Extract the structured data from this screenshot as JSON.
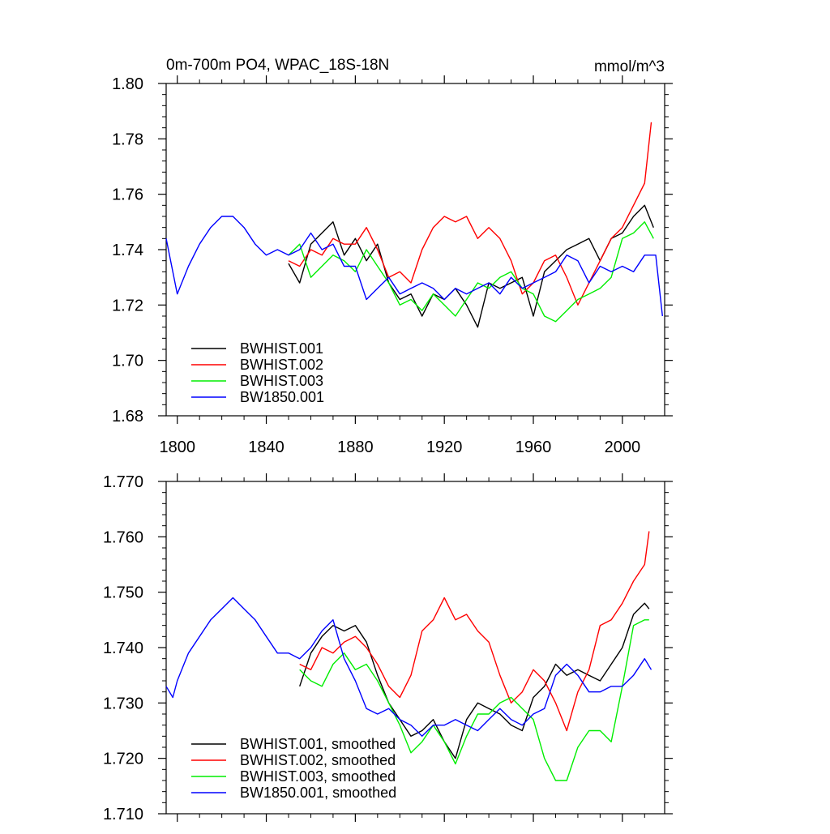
{
  "chart_data": [
    {
      "type": "line",
      "title": "0m-700m PO4, WPAC_18S-18N",
      "units": "mmol/m^3",
      "xlabel": "",
      "ylabel": "",
      "xlim": [
        1795,
        2019
      ],
      "ylim": [
        1.68,
        1.8
      ],
      "xticks": [
        1800,
        1840,
        1880,
        1920,
        1960,
        2000
      ],
      "yticks": [
        "1.68",
        "1.70",
        "1.72",
        "1.74",
        "1.76",
        "1.78",
        "1.80"
      ],
      "legend_position": "bottom-left",
      "series": [
        {
          "name": "BWHIST.001",
          "color": "#000000",
          "x": [
            1850,
            1855,
            1860,
            1865,
            1870,
            1875,
            1880,
            1885,
            1890,
            1895,
            1900,
            1905,
            1910,
            1915,
            1920,
            1925,
            1930,
            1935,
            1940,
            1945,
            1950,
            1955,
            1960,
            1965,
            1970,
            1975,
            1980,
            1985,
            1990,
            1995,
            2000,
            2005,
            2010,
            2014
          ],
          "values": [
            1.735,
            1.728,
            1.742,
            1.746,
            1.75,
            1.738,
            1.744,
            1.736,
            1.742,
            1.728,
            1.722,
            1.724,
            1.716,
            1.724,
            1.722,
            1.726,
            1.72,
            1.712,
            1.728,
            1.726,
            1.728,
            1.73,
            1.716,
            1.732,
            1.736,
            1.74,
            1.742,
            1.744,
            1.736,
            1.744,
            1.746,
            1.752,
            1.756,
            1.748
          ]
        },
        {
          "name": "BWHIST.002",
          "color": "#ff0000",
          "x": [
            1850,
            1855,
            1860,
            1865,
            1870,
            1875,
            1880,
            1885,
            1890,
            1895,
            1900,
            1905,
            1910,
            1915,
            1920,
            1925,
            1930,
            1935,
            1940,
            1945,
            1950,
            1955,
            1960,
            1965,
            1970,
            1975,
            1980,
            1985,
            1990,
            1995,
            2000,
            2005,
            2010,
            2013
          ],
          "values": [
            1.736,
            1.734,
            1.74,
            1.738,
            1.744,
            1.742,
            1.742,
            1.748,
            1.74,
            1.73,
            1.732,
            1.728,
            1.74,
            1.748,
            1.752,
            1.75,
            1.752,
            1.744,
            1.748,
            1.744,
            1.736,
            1.724,
            1.728,
            1.736,
            1.738,
            1.73,
            1.72,
            1.728,
            1.736,
            1.744,
            1.748,
            1.756,
            1.764,
            1.786
          ]
        },
        {
          "name": "BWHIST.003",
          "color": "#00ee00",
          "x": [
            1850,
            1855,
            1860,
            1865,
            1870,
            1875,
            1880,
            1885,
            1890,
            1895,
            1900,
            1905,
            1910,
            1915,
            1920,
            1925,
            1930,
            1935,
            1940,
            1945,
            1950,
            1955,
            1960,
            1965,
            1970,
            1975,
            1980,
            1985,
            1990,
            1995,
            2000,
            2005,
            2010,
            2014
          ],
          "values": [
            1.738,
            1.742,
            1.73,
            1.734,
            1.738,
            1.736,
            1.732,
            1.74,
            1.734,
            1.728,
            1.72,
            1.722,
            1.718,
            1.724,
            1.72,
            1.716,
            1.722,
            1.728,
            1.726,
            1.73,
            1.732,
            1.726,
            1.724,
            1.716,
            1.714,
            1.718,
            1.722,
            1.724,
            1.726,
            1.73,
            1.744,
            1.746,
            1.75,
            1.744
          ]
        },
        {
          "name": "BW1850.001",
          "color": "#0000ff",
          "x": [
            1795,
            1800,
            1805,
            1810,
            1815,
            1820,
            1825,
            1830,
            1835,
            1840,
            1845,
            1850,
            1855,
            1860,
            1865,
            1870,
            1875,
            1880,
            1885,
            1890,
            1895,
            1900,
            1905,
            1910,
            1915,
            1920,
            1925,
            1930,
            1935,
            1940,
            1945,
            1950,
            1955,
            1960,
            1965,
            1970,
            1975,
            1980,
            1985,
            1990,
            1995,
            2000,
            2005,
            2010,
            2015,
            2018
          ],
          "values": [
            1.744,
            1.724,
            1.734,
            1.742,
            1.748,
            1.752,
            1.752,
            1.748,
            1.742,
            1.738,
            1.74,
            1.738,
            1.74,
            1.746,
            1.74,
            1.742,
            1.734,
            1.734,
            1.722,
            1.726,
            1.73,
            1.724,
            1.726,
            1.728,
            1.726,
            1.722,
            1.726,
            1.724,
            1.726,
            1.728,
            1.724,
            1.73,
            1.726,
            1.728,
            1.73,
            1.732,
            1.738,
            1.736,
            1.728,
            1.734,
            1.732,
            1.734,
            1.732,
            1.738,
            1.738,
            1.716
          ]
        }
      ]
    },
    {
      "type": "line",
      "title": "",
      "xlabel": "",
      "ylabel": "",
      "xlim": [
        1795,
        2019
      ],
      "ylim": [
        1.71,
        1.77
      ],
      "xticks": [
        1800,
        1840,
        1880,
        1920,
        1960,
        2000
      ],
      "yticks": [
        "1.710",
        "1.720",
        "1.730",
        "1.740",
        "1.750",
        "1.760",
        "1.770"
      ],
      "legend_position": "bottom-left",
      "series": [
        {
          "name": "BWHIST.001, smoothed",
          "color": "#000000",
          "x": [
            1855,
            1860,
            1865,
            1870,
            1875,
            1880,
            1885,
            1890,
            1895,
            1900,
            1905,
            1910,
            1915,
            1920,
            1925,
            1930,
            1935,
            1940,
            1945,
            1950,
            1955,
            1960,
            1965,
            1970,
            1975,
            1980,
            1985,
            1990,
            1995,
            2000,
            2005,
            2010,
            2012
          ],
          "values": [
            1.733,
            1.739,
            1.742,
            1.744,
            1.743,
            1.744,
            1.741,
            1.735,
            1.73,
            1.727,
            1.724,
            1.725,
            1.727,
            1.723,
            1.72,
            1.727,
            1.73,
            1.729,
            1.728,
            1.726,
            1.725,
            1.731,
            1.733,
            1.737,
            1.735,
            1.736,
            1.735,
            1.734,
            1.737,
            1.74,
            1.746,
            1.748,
            1.747
          ]
        },
        {
          "name": "BWHIST.002, smoothed",
          "color": "#ff0000",
          "x": [
            1855,
            1860,
            1865,
            1870,
            1875,
            1880,
            1885,
            1890,
            1895,
            1900,
            1905,
            1910,
            1915,
            1920,
            1925,
            1930,
            1935,
            1940,
            1945,
            1950,
            1955,
            1960,
            1965,
            1970,
            1975,
            1980,
            1985,
            1990,
            1995,
            2000,
            2005,
            2010,
            2012
          ],
          "values": [
            1.737,
            1.736,
            1.74,
            1.739,
            1.741,
            1.742,
            1.74,
            1.737,
            1.733,
            1.731,
            1.735,
            1.743,
            1.745,
            1.749,
            1.745,
            1.746,
            1.743,
            1.741,
            1.735,
            1.73,
            1.732,
            1.736,
            1.734,
            1.73,
            1.725,
            1.732,
            1.736,
            1.744,
            1.745,
            1.748,
            1.752,
            1.755,
            1.761
          ]
        },
        {
          "name": "BWHIST.003, smoothed",
          "color": "#00ee00",
          "x": [
            1855,
            1860,
            1865,
            1870,
            1875,
            1880,
            1885,
            1890,
            1895,
            1900,
            1905,
            1910,
            1915,
            1920,
            1925,
            1930,
            1935,
            1940,
            1945,
            1950,
            1955,
            1960,
            1965,
            1970,
            1975,
            1980,
            1985,
            1990,
            1995,
            2000,
            2005,
            2010,
            2012
          ],
          "values": [
            1.736,
            1.734,
            1.733,
            1.737,
            1.739,
            1.736,
            1.737,
            1.734,
            1.73,
            1.726,
            1.721,
            1.723,
            1.726,
            1.723,
            1.719,
            1.724,
            1.728,
            1.728,
            1.73,
            1.731,
            1.729,
            1.727,
            1.72,
            1.716,
            1.716,
            1.722,
            1.725,
            1.725,
            1.723,
            1.733,
            1.744,
            1.745,
            1.745
          ]
        },
        {
          "name": "BW1850.001, smoothed",
          "color": "#0000ff",
          "x": [
            1795,
            1798,
            1800,
            1805,
            1810,
            1815,
            1820,
            1825,
            1830,
            1835,
            1840,
            1845,
            1850,
            1855,
            1860,
            1865,
            1870,
            1875,
            1880,
            1885,
            1890,
            1895,
            1900,
            1905,
            1910,
            1915,
            1920,
            1925,
            1930,
            1935,
            1940,
            1945,
            1950,
            1955,
            1960,
            1965,
            1970,
            1975,
            1980,
            1985,
            1990,
            1995,
            2000,
            2005,
            2010,
            2013
          ],
          "values": [
            1.733,
            1.731,
            1.734,
            1.739,
            1.742,
            1.745,
            1.747,
            1.749,
            1.747,
            1.745,
            1.742,
            1.739,
            1.739,
            1.738,
            1.74,
            1.743,
            1.745,
            1.738,
            1.734,
            1.729,
            1.728,
            1.729,
            1.727,
            1.726,
            1.724,
            1.726,
            1.726,
            1.727,
            1.726,
            1.725,
            1.727,
            1.729,
            1.727,
            1.726,
            1.728,
            1.729,
            1.735,
            1.737,
            1.735,
            1.732,
            1.732,
            1.733,
            1.733,
            1.735,
            1.738,
            1.736
          ]
        }
      ]
    }
  ]
}
